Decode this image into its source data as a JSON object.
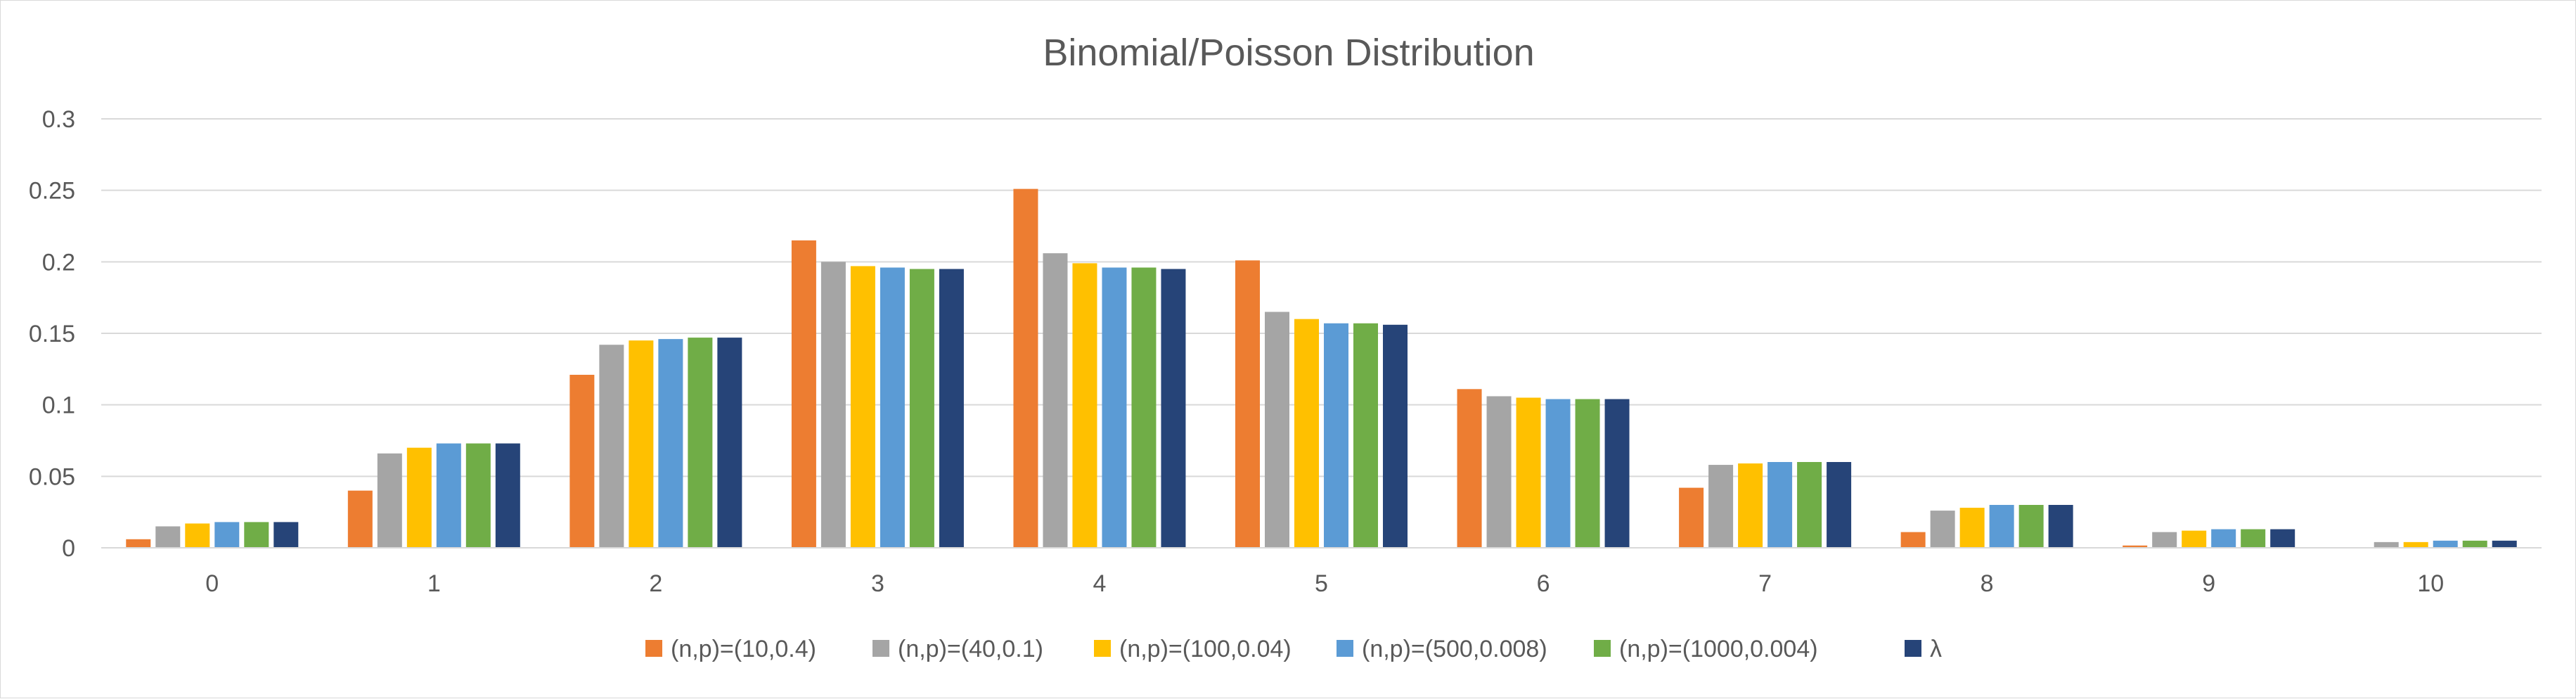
{
  "chart_data": {
    "type": "bar",
    "title": "Binomial/Poisson Distribution",
    "xlabel": "",
    "ylabel": "",
    "categories": [
      "0",
      "1",
      "2",
      "3",
      "4",
      "5",
      "6",
      "7",
      "8",
      "9",
      "10"
    ],
    "ylim": [
      0,
      0.3
    ],
    "yticks": [
      0,
      0.05,
      0.1,
      0.15,
      0.2,
      0.25,
      0.3
    ],
    "ytick_labels": [
      "0",
      "0.05",
      "0.1",
      "0.15",
      "0.2",
      "0.25",
      "0.3"
    ],
    "grid": true,
    "legend_position": "bottom",
    "series": [
      {
        "name": "(n,p)=(10,0.4)",
        "color": "#ED7D31",
        "values": [
          0.006,
          0.04,
          0.121,
          0.215,
          0.251,
          0.201,
          0.111,
          0.042,
          0.011,
          0.0016,
          0.0001
        ]
      },
      {
        "name": "(n,p)=(40,0.1)",
        "color": "#A5A5A5",
        "values": [
          0.015,
          0.066,
          0.142,
          0.2,
          0.206,
          0.165,
          0.106,
          0.058,
          0.026,
          0.011,
          0.004
        ]
      },
      {
        "name": "(n,p)=(100,0.04)",
        "color": "#FFC000",
        "values": [
          0.017,
          0.07,
          0.145,
          0.197,
          0.199,
          0.16,
          0.105,
          0.059,
          0.028,
          0.012,
          0.004
        ]
      },
      {
        "name": "(n,p)=(500,0.008)",
        "color": "#5B9BD5",
        "values": [
          0.018,
          0.073,
          0.146,
          0.196,
          0.196,
          0.157,
          0.104,
          0.06,
          0.03,
          0.013,
          0.005
        ]
      },
      {
        "name": "(n,p)=(1000,0.004)",
        "color": "#70AD47",
        "values": [
          0.018,
          0.073,
          0.147,
          0.195,
          0.196,
          0.157,
          0.104,
          0.06,
          0.03,
          0.013,
          0.005
        ]
      },
      {
        "name": "λ",
        "color": "#264478",
        "values": [
          0.018,
          0.073,
          0.147,
          0.195,
          0.195,
          0.156,
          0.104,
          0.06,
          0.03,
          0.013,
          0.005
        ]
      }
    ]
  }
}
